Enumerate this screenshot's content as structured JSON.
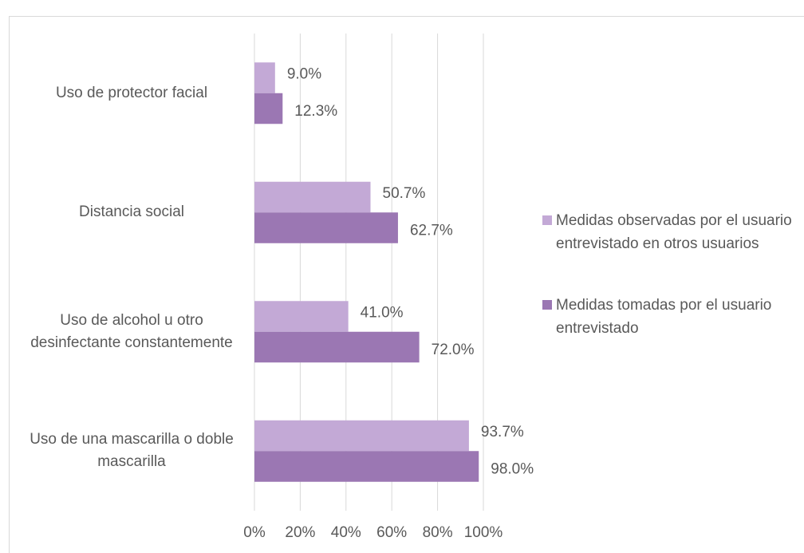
{
  "chart_data": {
    "type": "bar",
    "orientation": "horizontal",
    "categories": [
      "Uso de protector facial",
      "Distancia social",
      "Uso de alcohol u otro desinfectante constantemente",
      "Uso de una mascarilla o doble mascarilla"
    ],
    "series": [
      {
        "name": "Medidas observadas por el usuario entrevistado en otros usuarios",
        "color": "#c3a9d6",
        "values": [
          9.0,
          50.7,
          41.0,
          93.7
        ],
        "value_labels": [
          "9.0%",
          "50.7%",
          "41.0%",
          "93.7%"
        ]
      },
      {
        "name": "Medidas tomadas por el usuario entrevistado",
        "color": "#9b77b3",
        "values": [
          12.3,
          62.7,
          72.0,
          98.0
        ],
        "value_labels": [
          "12.3%",
          "62.7%",
          "72.0%",
          "98.0%"
        ]
      }
    ],
    "xlim": [
      0,
      100
    ],
    "xticks": [
      {
        "value": 0,
        "label": "0%"
      },
      {
        "value": 20,
        "label": "20%"
      },
      {
        "value": 40,
        "label": "40%"
      },
      {
        "value": 60,
        "label": "60%"
      },
      {
        "value": 80,
        "label": "80%"
      },
      {
        "value": 100,
        "label": "100%"
      }
    ],
    "grid": true,
    "legend": "right"
  }
}
